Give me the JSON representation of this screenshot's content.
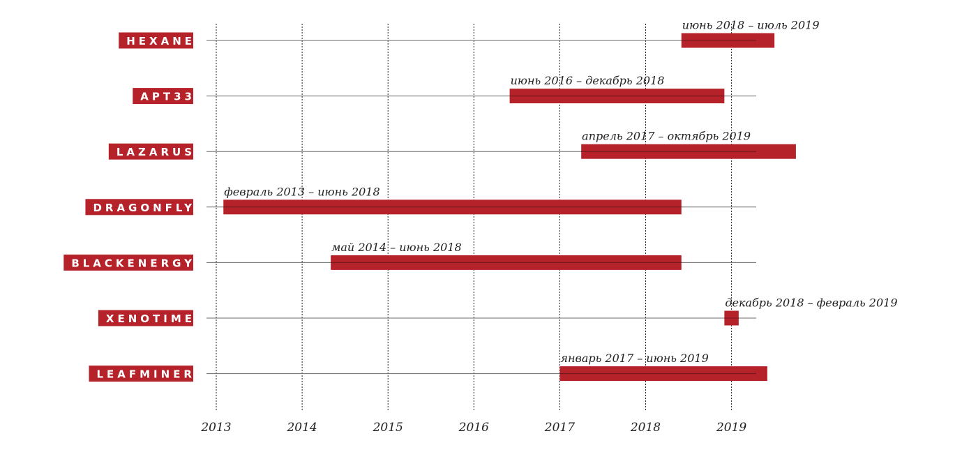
{
  "chart_data": {
    "type": "bar",
    "orientation": "horizontal-timeline",
    "title": "",
    "xlabel": "",
    "ylabel": "",
    "x_ticks": [
      "2013",
      "2014",
      "2015",
      "2016",
      "2017",
      "2018",
      "2019"
    ],
    "xlim": [
      2013,
      2019.28
    ],
    "grid": "vertical dashed",
    "colors": {
      "bar": "#b5222a",
      "category_bg": "#b5222a",
      "category_text": "#ffffff",
      "grid": "#222222"
    },
    "categories": [
      "HEXANE",
      "APT33",
      "LAZARUS",
      "DRAGONFLY",
      "BLACKENERGY",
      "XENOTIME",
      "LEAFMINER"
    ],
    "series": [
      {
        "values": [
          {
            "category": "HEXANE",
            "start": "2018-06",
            "end": "2019-07",
            "label": "июнь 2018 – июль 2019"
          },
          {
            "category": "APT33",
            "start": "2016-06",
            "end": "2018-12",
            "label": "июнь 2016 – декабрь 2018"
          },
          {
            "category": "LAZARUS",
            "start": "2017-04",
            "end": "2019-10",
            "label": "апрель 2017 – октябрь 2019"
          },
          {
            "category": "DRAGONFLY",
            "start": "2013-02",
            "end": "2018-06",
            "label": "февраль 2013 – июнь 2018"
          },
          {
            "category": "BLACKENERGY",
            "start": "2014-05",
            "end": "2018-06",
            "label": "май 2014 – июнь 2018"
          },
          {
            "category": "XENOTIME",
            "start": "2018-12",
            "end": "2019-02",
            "label": "декабрь 2018 – февраль 2019"
          },
          {
            "category": "LEAFMINER",
            "start": "2017-01",
            "end": "2019-06",
            "label": "январь 2017 – июнь 2019"
          }
        ]
      }
    ]
  }
}
